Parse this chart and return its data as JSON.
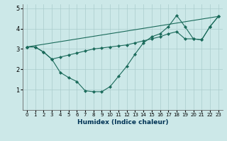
{
  "bg_color": "#cce8e8",
  "grid_color": "#aacccc",
  "line_color": "#1a6a5a",
  "xlabel": "Humidex (Indice chaleur)",
  "xlim": [
    -0.5,
    23.5
  ],
  "ylim": [
    0,
    5.2
  ],
  "yticks": [
    1,
    2,
    3,
    4,
    5
  ],
  "xticks": [
    0,
    1,
    2,
    3,
    4,
    5,
    6,
    7,
    8,
    9,
    10,
    11,
    12,
    13,
    14,
    15,
    16,
    17,
    18,
    19,
    20,
    21,
    22,
    23
  ],
  "series1_x": [
    0,
    1,
    2,
    3,
    4,
    5,
    6,
    7,
    8,
    9,
    10,
    11,
    12,
    13,
    14,
    15,
    16,
    17,
    18,
    19,
    20,
    21,
    22,
    23
  ],
  "series1_y": [
    3.1,
    3.1,
    2.85,
    2.5,
    1.85,
    1.6,
    1.4,
    0.95,
    0.9,
    0.9,
    1.15,
    1.65,
    2.15,
    2.75,
    3.3,
    3.6,
    3.75,
    4.1,
    4.65,
    4.1,
    3.5,
    3.45,
    4.1,
    4.6
  ],
  "series2_x": [
    0,
    1,
    2,
    3,
    4,
    5,
    6,
    7,
    8,
    9,
    10,
    11,
    12,
    13,
    14,
    15,
    16,
    17,
    18,
    19,
    20,
    21,
    22,
    23
  ],
  "series2_y": [
    3.1,
    3.1,
    2.85,
    2.5,
    2.6,
    2.7,
    2.8,
    2.9,
    3.0,
    3.05,
    3.1,
    3.15,
    3.2,
    3.3,
    3.4,
    3.5,
    3.6,
    3.75,
    3.85,
    3.5,
    3.5,
    3.45,
    4.1,
    4.6
  ],
  "series3_x": [
    0,
    23
  ],
  "series3_y": [
    3.1,
    4.6
  ]
}
